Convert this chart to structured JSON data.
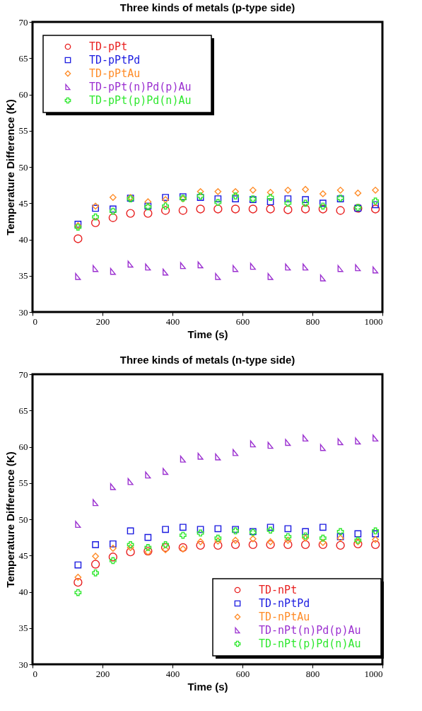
{
  "chart_data": [
    {
      "type": "scatter",
      "title": "Three kinds of metals (p-type side)",
      "xlabel": "Time (s)",
      "ylabel": "Temperature Difference (K)",
      "xlim": [
        0,
        1000
      ],
      "ylim": [
        30,
        70
      ],
      "xticks": [
        0,
        200,
        400,
        600,
        800,
        1000
      ],
      "yticks": [
        30,
        35,
        40,
        45,
        50,
        55,
        60,
        65,
        70
      ],
      "grid": false,
      "legend": "top left",
      "x": [
        130,
        180,
        230,
        280,
        330,
        380,
        430,
        480,
        530,
        580,
        630,
        680,
        730,
        780,
        830,
        880,
        930,
        980
      ],
      "series": [
        {
          "name": "TD-pPt",
          "color": "#e82020",
          "marker": "circle",
          "values": [
            40.1,
            42.3,
            43.0,
            43.6,
            43.6,
            44.0,
            44.0,
            44.2,
            44.2,
            44.2,
            44.2,
            44.2,
            44.1,
            44.2,
            44.2,
            44.0,
            44.3,
            44.2
          ]
        },
        {
          "name": "TD-pPtPd",
          "color": "#1a1ae0",
          "marker": "square",
          "values": [
            42.1,
            44.3,
            44.2,
            45.7,
            44.6,
            45.8,
            45.9,
            45.8,
            45.6,
            45.6,
            45.5,
            45.2,
            45.6,
            45.5,
            45.0,
            45.6,
            44.3,
            44.8
          ]
        },
        {
          "name": "TD-pPtAu",
          "color": "#ff8c28",
          "marker": "diamond",
          "values": [
            41.9,
            44.6,
            45.8,
            45.8,
            45.2,
            45.5,
            45.6,
            46.6,
            46.6,
            46.6,
            46.8,
            46.5,
            46.8,
            46.9,
            46.3,
            46.8,
            46.4,
            46.8
          ]
        },
        {
          "name": "TD-pPt(n)Pd(p)Au",
          "color": "#9b30d0",
          "marker": "triangle",
          "values": [
            34.9,
            36.0,
            35.6,
            36.6,
            36.2,
            35.5,
            36.4,
            36.5,
            34.9,
            36.0,
            36.3,
            34.9,
            36.2,
            36.2,
            34.7,
            36.0,
            36.1,
            35.8
          ]
        },
        {
          "name": "TD-pPt(p)Pd(n)Au",
          "color": "#30e830",
          "marker": "cross",
          "values": [
            41.7,
            43.1,
            43.9,
            45.6,
            44.5,
            44.6,
            45.7,
            46.0,
            45.1,
            46.0,
            45.6,
            45.8,
            45.0,
            45.0,
            44.6,
            45.7,
            44.4,
            45.3
          ]
        }
      ]
    },
    {
      "type": "scatter",
      "title": "Three kinds of metals (n-type side)",
      "xlabel": "Time (s)",
      "ylabel": "Temperature Difference (K)",
      "xlim": [
        0,
        1000
      ],
      "ylim": [
        30,
        70
      ],
      "xticks": [
        0,
        200,
        400,
        600,
        800,
        1000
      ],
      "yticks": [
        30,
        35,
        40,
        45,
        50,
        55,
        60,
        65,
        70
      ],
      "grid": false,
      "legend": "bottom right",
      "x": [
        130,
        180,
        230,
        280,
        330,
        380,
        430,
        480,
        530,
        580,
        630,
        680,
        730,
        780,
        830,
        880,
        930,
        980
      ],
      "series": [
        {
          "name": "TD-nPt",
          "color": "#e82020",
          "marker": "circle",
          "values": [
            41.3,
            43.8,
            44.8,
            45.5,
            45.6,
            46.1,
            46.1,
            46.4,
            46.4,
            46.5,
            46.5,
            46.5,
            46.5,
            46.5,
            46.5,
            46.4,
            46.6,
            46.5
          ]
        },
        {
          "name": "TD-nPtPd",
          "color": "#1a1ae0",
          "marker": "square",
          "values": [
            43.7,
            46.5,
            46.6,
            48.4,
            47.5,
            48.6,
            48.9,
            48.6,
            48.7,
            48.6,
            48.3,
            48.9,
            48.7,
            48.3,
            48.9,
            47.6,
            48.0,
            48.0
          ]
        },
        {
          "name": "TD-nPtAu",
          "color": "#ff8c28",
          "marker": "diamond",
          "values": [
            42.0,
            44.9,
            46.0,
            46.1,
            45.5,
            45.8,
            45.9,
            46.9,
            47.0,
            47.1,
            47.3,
            46.9,
            47.1,
            47.4,
            46.8,
            47.4,
            46.9,
            47.2
          ]
        },
        {
          "name": "TD-nPt(n)Pd(p)Au",
          "color": "#9b30d0",
          "marker": "triangle",
          "values": [
            49.3,
            52.3,
            54.5,
            55.2,
            56.1,
            56.6,
            58.3,
            58.7,
            58.6,
            59.2,
            60.4,
            60.2,
            60.6,
            61.2,
            59.9,
            60.7,
            60.8,
            61.2
          ]
        },
        {
          "name": "TD-nPt(p)Pd(n)Au",
          "color": "#30e830",
          "marker": "cross",
          "values": [
            39.9,
            42.6,
            44.3,
            46.5,
            46.1,
            46.5,
            47.8,
            48.1,
            47.4,
            48.4,
            48.2,
            48.5,
            47.6,
            47.7,
            47.4,
            48.3,
            47.1,
            48.4
          ]
        }
      ]
    }
  ]
}
